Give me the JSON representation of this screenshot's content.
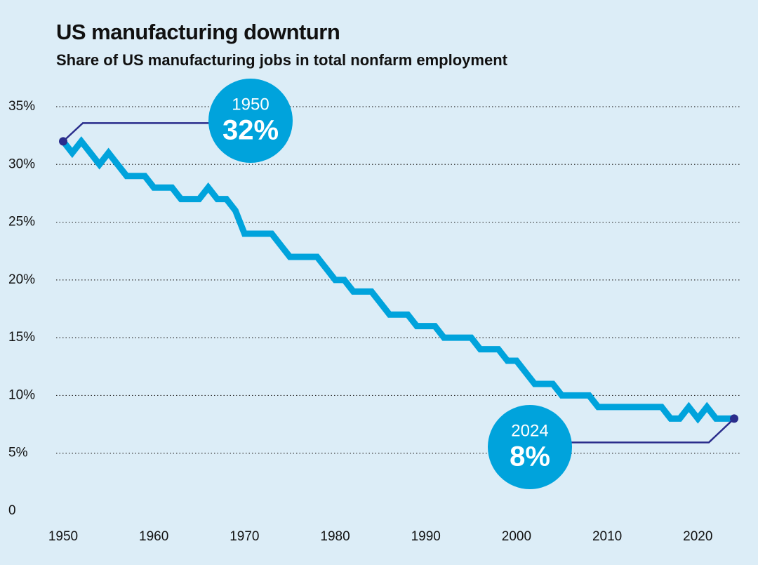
{
  "chart_data": {
    "type": "line",
    "title": "US manufacturing downturn",
    "subtitle": "Share of US manufacturing jobs in total nonfarm employment",
    "x": [
      1950,
      1951,
      1952,
      1953,
      1954,
      1955,
      1956,
      1957,
      1958,
      1959,
      1960,
      1961,
      1962,
      1963,
      1964,
      1965,
      1966,
      1967,
      1968,
      1969,
      1970,
      1971,
      1972,
      1973,
      1974,
      1975,
      1976,
      1977,
      1978,
      1979,
      1980,
      1981,
      1982,
      1983,
      1984,
      1985,
      1986,
      1987,
      1988,
      1989,
      1990,
      1991,
      1992,
      1993,
      1994,
      1995,
      1996,
      1997,
      1998,
      1999,
      2000,
      2001,
      2002,
      2003,
      2004,
      2005,
      2006,
      2007,
      2008,
      2009,
      2010,
      2011,
      2012,
      2013,
      2014,
      2015,
      2016,
      2017,
      2018,
      2019,
      2020,
      2021,
      2022,
      2023,
      2024
    ],
    "series": [
      {
        "color": "#00a3dc",
        "values": [
          32,
          31,
          32,
          31,
          30,
          31,
          30,
          29,
          29,
          29,
          28,
          28,
          28,
          27,
          27,
          27,
          28,
          27,
          27,
          26,
          24,
          24,
          24,
          24,
          23,
          22,
          22,
          22,
          22,
          21,
          20,
          20,
          19,
          19,
          19,
          18,
          17,
          17,
          17,
          16,
          16,
          16,
          15,
          15,
          15,
          15,
          14,
          14,
          14,
          13,
          13,
          12,
          11,
          11,
          11,
          10,
          10,
          10,
          10,
          9,
          9,
          9,
          9,
          9,
          9,
          9,
          9,
          8,
          8,
          9,
          8,
          9,
          8,
          8,
          8
        ]
      }
    ],
    "xlim": [
      1950,
      2024
    ],
    "ylim": [
      0,
      35
    ],
    "xticks": [
      1950,
      1960,
      1970,
      1980,
      1990,
      2000,
      2010,
      2020
    ],
    "yticks": [
      0,
      {
        "value": 5,
        "label": "5%"
      },
      {
        "value": 10,
        "label": "10%"
      },
      {
        "value": 15,
        "label": "15%"
      },
      {
        "value": 20,
        "label": "20%"
      },
      {
        "value": 25,
        "label": "25%"
      },
      {
        "value": 30,
        "label": "30%"
      },
      {
        "value": 35,
        "label": "35%"
      }
    ],
    "grid": true,
    "accent_color": "#2a2d8c",
    "annotations": [
      {
        "label": "1950",
        "value_label": "32%"
      },
      {
        "label": "2024",
        "value_label": "8%"
      }
    ]
  }
}
